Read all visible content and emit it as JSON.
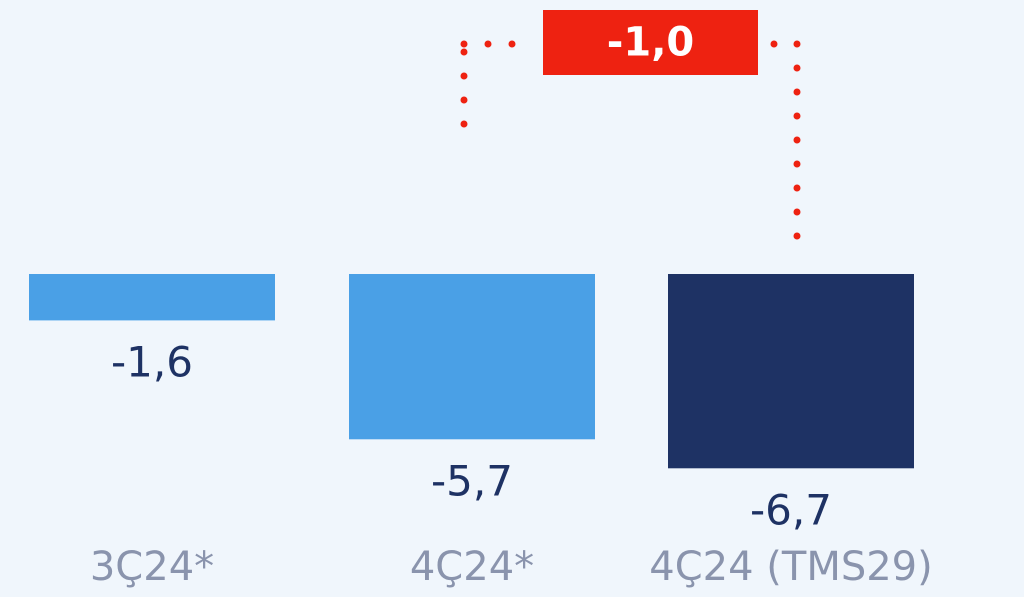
{
  "chart_data": {
    "type": "bar",
    "categories": [
      "3Ç24*",
      "4Ç24*",
      "4Ç24 (TMS29)"
    ],
    "values": [
      -1.6,
      -5.7,
      -6.7
    ],
    "value_labels": [
      "-1,6",
      "-5,7",
      "-6,7"
    ],
    "ylim": [
      -7,
      0
    ],
    "grid": false,
    "legend": "none",
    "colors": [
      "#4aa0e6",
      "#4aa0e6",
      "#1e3264"
    ],
    "annotation": {
      "text": "-1,0",
      "value": -1.0,
      "between": [
        "4Ç24*",
        "4Ç24 (TMS29)"
      ],
      "color": "#ee2211"
    }
  },
  "colors": {
    "background": "#f0f6fc",
    "value_text": "#1e3264",
    "category_text": "#8a94ad"
  }
}
